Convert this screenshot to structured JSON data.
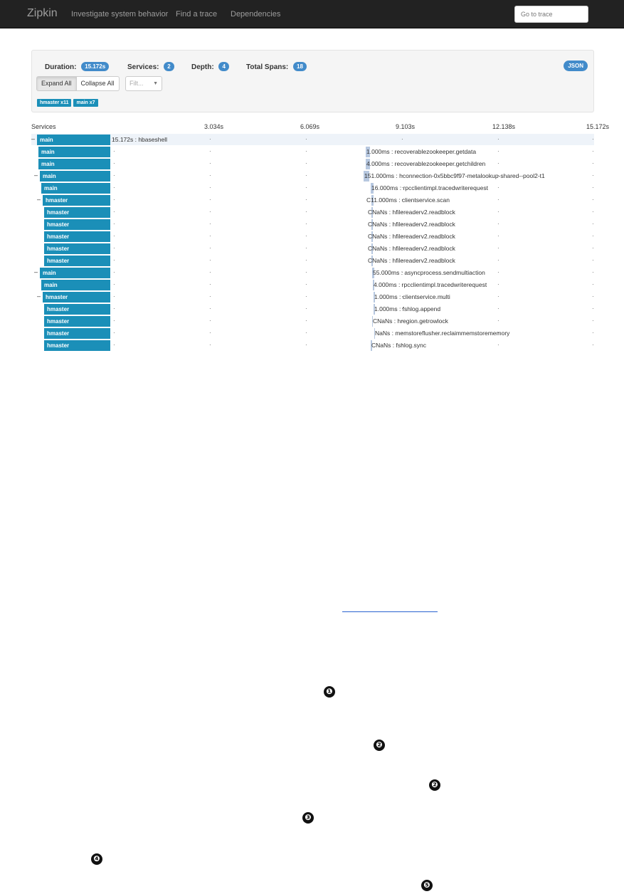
{
  "navbar": {
    "brand": "Zipkin",
    "subtitle": "Investigate system behavior",
    "links": [
      "Find a trace",
      "Dependencies"
    ],
    "goto_placeholder": "Go to trace"
  },
  "summary": {
    "duration_label": "Duration:",
    "duration_value": "15.172s",
    "services_label": "Services:",
    "services_value": "2",
    "depth_label": "Depth:",
    "depth_value": "4",
    "spans_label": "Total Spans:",
    "spans_value": "18",
    "json_label": "JSON",
    "expand_label": "Expand All",
    "collapse_label": "Collapse All",
    "filter_placeholder": "Filt...",
    "service_tags": [
      "hmaster x11",
      "main x7"
    ]
  },
  "timeline": {
    "services_header": "Services",
    "ticks": [
      "3.034s",
      "6.069s",
      "9.103s",
      "12.138s",
      "15.172s"
    ],
    "rows": [
      {
        "toggle": "–",
        "service": "main",
        "label": "15.172s : hbaseshell"
      },
      {
        "toggle": "",
        "service": "main",
        "label": "1.000ms : recoverablezookeeper.getdata"
      },
      {
        "toggle": "",
        "service": "main",
        "label": "4.000ms : recoverablezookeeper.getchildren"
      },
      {
        "toggle": "–",
        "service": "main",
        "label": "151.000ms : hconnection-0x5bbc9f97-metalookup-shared--pool2-t1"
      },
      {
        "toggle": "",
        "service": "main",
        "label": "16.000ms : rpcclientimpl.tracedwriterequest"
      },
      {
        "toggle": "–",
        "service": "hmaster",
        "label": "C11.000ms : clientservice.scan"
      },
      {
        "toggle": "",
        "service": "hmaster",
        "label": "CNaNs : hfilereaderv2.readblock"
      },
      {
        "toggle": "",
        "service": "hmaster",
        "label": "CNaNs : hfilereaderv2.readblock"
      },
      {
        "toggle": "",
        "service": "hmaster",
        "label": "CNaNs : hfilereaderv2.readblock"
      },
      {
        "toggle": "",
        "service": "hmaster",
        "label": "CNaNs : hfilereaderv2.readblock"
      },
      {
        "toggle": "",
        "service": "hmaster",
        "label": "CNaNs : hfilereaderv2.readblock"
      },
      {
        "toggle": "–",
        "service": "main",
        "label": "55.000ms : asyncprocess.sendmultiaction"
      },
      {
        "toggle": "",
        "service": "main",
        "label": "4.000ms : rpcclientimpl.tracedwriterequest"
      },
      {
        "toggle": "–",
        "service": "hmaster",
        "label": "1.000ms : clientservice.multi"
      },
      {
        "toggle": "",
        "service": "hmaster",
        "label": "1.000ms : fshlog.append"
      },
      {
        "toggle": "",
        "service": "hmaster",
        "label": "CNaNs : hregion.getrowlock"
      },
      {
        "toggle": "",
        "service": "hmaster",
        "label": "NaNs : memstoreflusher.reclaimmemstorememory"
      },
      {
        "toggle": "",
        "service": "hmaster",
        "label": "CNaNs : fshlog.sync"
      }
    ]
  },
  "callouts": [
    "❶",
    "❷",
    "❷",
    "❸",
    "❹",
    "❺"
  ]
}
